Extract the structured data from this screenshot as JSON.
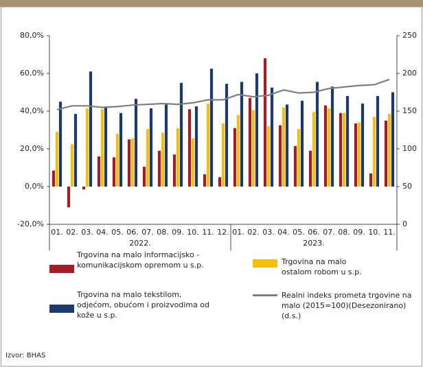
{
  "chart_data": {
    "type": "bar",
    "categories": [
      "01.",
      "02.",
      "03.",
      "04.",
      "05.",
      "06.",
      "07.",
      "08.",
      "09.",
      "10.",
      "11.",
      "12.",
      "01.",
      "02.",
      "03.",
      "04.",
      "05.",
      "06.",
      "07.",
      "08.",
      "09.",
      "10.",
      "11."
    ],
    "x_groups": [
      "2022.",
      "2023."
    ],
    "series": [
      {
        "name": "Trgovina na malo informacijsko - komunikacijskom opremom u s.p.",
        "color": "#a51d24",
        "values": [
          8.5,
          -11,
          -1.5,
          16,
          15.5,
          25,
          10.5,
          19,
          17,
          41,
          6.5,
          5,
          31,
          47,
          68,
          32.5,
          21.5,
          19,
          43,
          39,
          33.5,
          7,
          35
        ]
      },
      {
        "name": "Trgovina na malo tekstilom, odjećom, obućom i proizvodima od kože u s.p.",
        "color": "#1c3a6b",
        "values": [
          45,
          38.5,
          61,
          42.5,
          39,
          46.5,
          41.5,
          43.5,
          55,
          42.5,
          62.5,
          54.5,
          55.5,
          60,
          52.5,
          43.5,
          45.5,
          55.5,
          53,
          48,
          44,
          48,
          50
        ]
      },
      {
        "name": "Trgovina na malo ostalom robom u s.p.",
        "color": "#f5bd0f",
        "values": [
          29,
          22.5,
          41.5,
          41,
          28,
          25.5,
          30.5,
          28.5,
          31,
          25.5,
          44,
          33.5,
          38,
          40.5,
          32,
          42,
          30.5,
          39.5,
          41.5,
          39,
          34,
          37,
          38.5
        ]
      },
      {
        "name": "Realni indeks prometa trgovine na malo (2015=100)(Desezonirano)(d.s.)",
        "color": "#7f7f7f",
        "type": "line",
        "axis": "y2",
        "values": [
          152,
          157,
          157,
          155,
          156,
          158,
          159,
          160,
          159,
          161,
          165,
          165,
          172,
          169,
          171,
          178,
          174,
          175,
          180,
          182,
          184,
          185,
          192
        ]
      }
    ],
    "ylim": [
      -20,
      80
    ],
    "yticks": [
      {
        "value": -20,
        "label": "-20,0%"
      },
      {
        "value": 0,
        "label": "0,0%"
      },
      {
        "value": 20,
        "label": "20,0%"
      },
      {
        "value": 40,
        "label": "40,0%"
      },
      {
        "value": 60,
        "label": "60,0%"
      },
      {
        "value": 80,
        "label": "80,0%"
      }
    ],
    "y2lim": [
      0,
      250
    ],
    "y2ticks": [
      0,
      50,
      100,
      150,
      200,
      250
    ],
    "source": "Izvor: BHAS"
  }
}
